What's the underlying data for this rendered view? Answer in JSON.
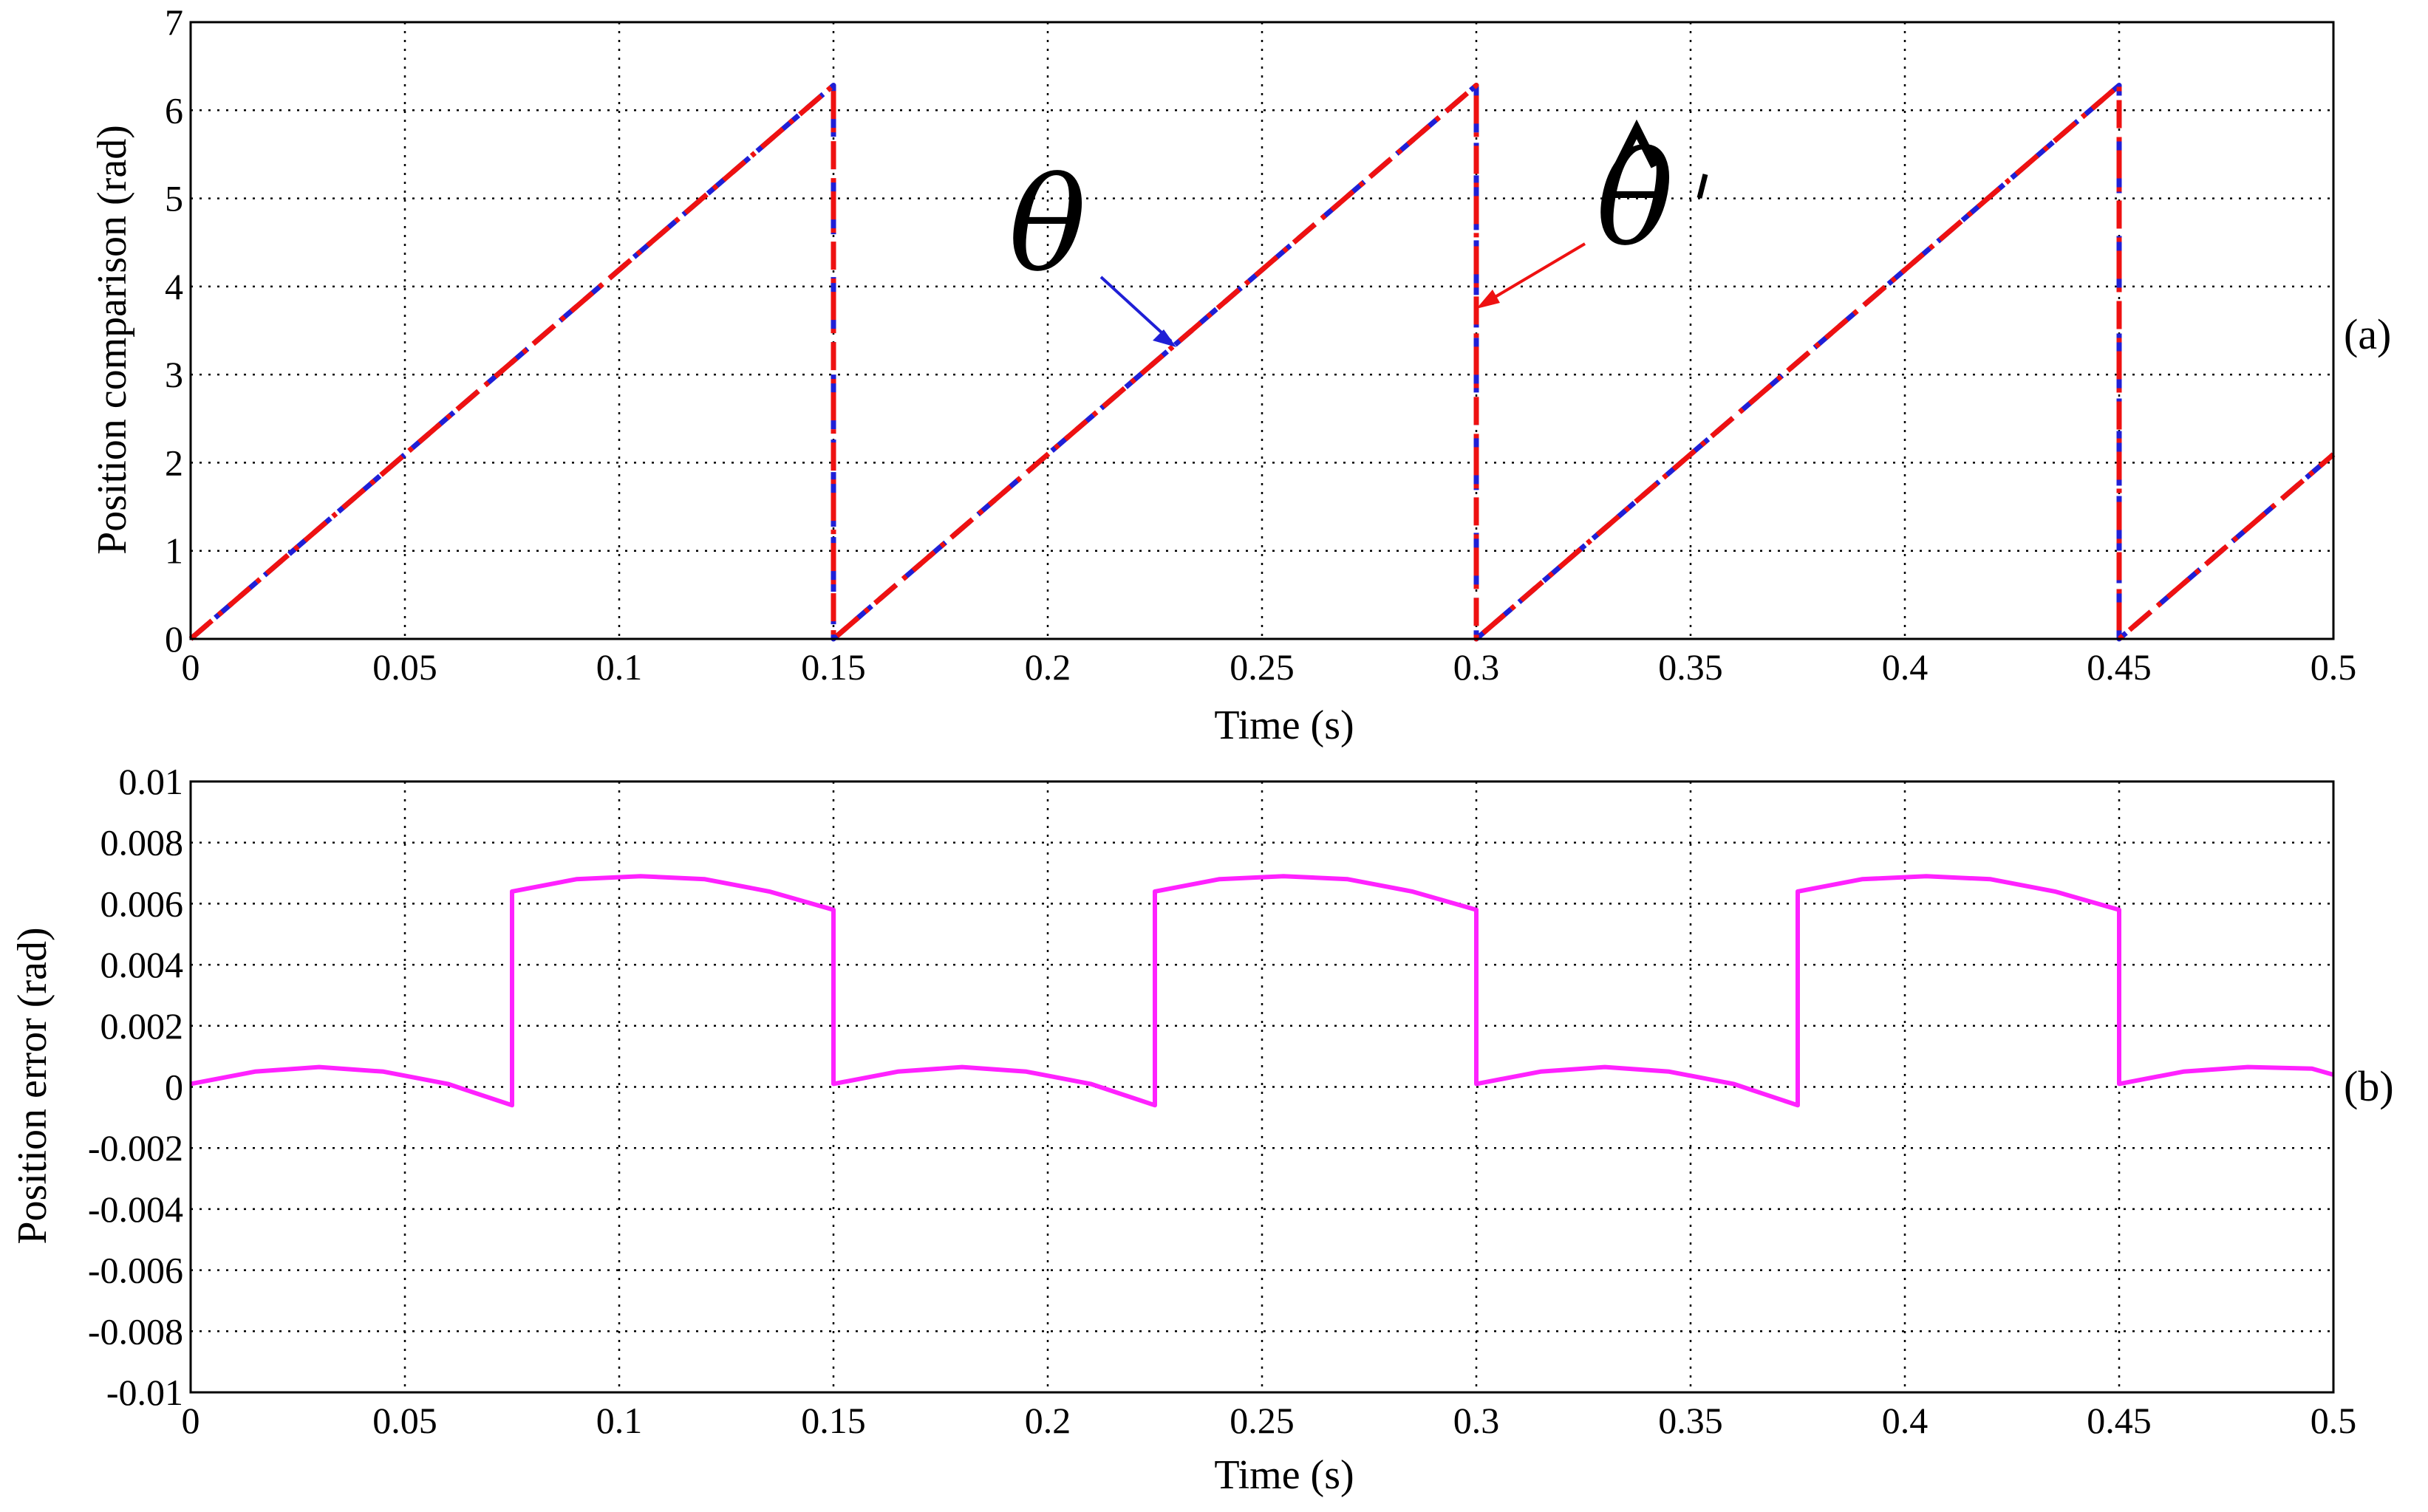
{
  "chart_data": [
    {
      "id": "a",
      "type": "line",
      "panel_label": "(a)",
      "xlabel": "Time (s)",
      "ylabel": "Position comparison (rad)",
      "xlim": [
        0,
        0.5
      ],
      "ylim": [
        0,
        7
      ],
      "xticks": [
        "0",
        "0.05",
        "0.1",
        "0.15",
        "0.2",
        "0.25",
        "0.3",
        "0.35",
        "0.4",
        "0.45",
        "0.5"
      ],
      "yticks": [
        "0",
        "1",
        "2",
        "3",
        "4",
        "5",
        "6",
        "7"
      ],
      "grid": true,
      "annotations": [
        {
          "name": "theta",
          "text": "θ",
          "color": "#1f1fd6",
          "points_to_x": 0.228,
          "points_to_y": 3.3
        },
        {
          "name": "theta-hat",
          "text": "θ̂'",
          "color": "#ee1111",
          "points_to_x": 0.3,
          "points_to_y": 3.8
        }
      ],
      "series": [
        {
          "name": "θ",
          "color": "#1f1fd6",
          "style": "dashed",
          "x": [
            0,
            0.15,
            0.15,
            0.3,
            0.3,
            0.45,
            0.45,
            0.5
          ],
          "y": [
            0,
            6.283,
            0,
            6.283,
            0,
            6.283,
            0,
            2.094
          ]
        },
        {
          "name": "θ̂'",
          "color": "#ee1111",
          "style": "dashdot",
          "x": [
            0,
            0.15,
            0.15,
            0.3,
            0.3,
            0.45,
            0.45,
            0.5
          ],
          "y": [
            0,
            6.283,
            0,
            6.283,
            0,
            6.283,
            0,
            2.094
          ]
        }
      ]
    },
    {
      "id": "b",
      "type": "line",
      "panel_label": "(b)",
      "xlabel": "Time (s)",
      "ylabel": "Position error (rad)",
      "xlim": [
        0,
        0.5
      ],
      "ylim": [
        -0.01,
        0.01
      ],
      "xticks": [
        "0",
        "0.05",
        "0.1",
        "0.15",
        "0.2",
        "0.25",
        "0.3",
        "0.35",
        "0.4",
        "0.45",
        "0.5"
      ],
      "yticks": [
        "-0.01",
        "-0.008",
        "-0.006",
        "-0.004",
        "-0.002",
        "0",
        "0.002",
        "0.004",
        "0.006",
        "0.008",
        "0.01"
      ],
      "grid": true,
      "series": [
        {
          "name": "Position error",
          "color": "#ff22ff",
          "style": "solid",
          "x": [
            0,
            0.015,
            0.03,
            0.045,
            0.06,
            0.075,
            0.075,
            0.09,
            0.105,
            0.12,
            0.135,
            0.15,
            0.15,
            0.165,
            0.18,
            0.195,
            0.21,
            0.225,
            0.225,
            0.24,
            0.255,
            0.27,
            0.285,
            0.3,
            0.3,
            0.315,
            0.33,
            0.345,
            0.36,
            0.375,
            0.375,
            0.39,
            0.405,
            0.42,
            0.435,
            0.45,
            0.45,
            0.465,
            0.48,
            0.495,
            0.5
          ],
          "y": [
            0.0001,
            0.0005,
            0.00065,
            0.0005,
            0.0001,
            -0.0006,
            0.0064,
            0.0068,
            0.0069,
            0.0068,
            0.0064,
            0.0058,
            0.0001,
            0.0005,
            0.00065,
            0.0005,
            0.0001,
            -0.0006,
            0.0064,
            0.0068,
            0.0069,
            0.0068,
            0.0064,
            0.0058,
            0.0001,
            0.0005,
            0.00065,
            0.0005,
            0.0001,
            -0.0006,
            0.0064,
            0.0068,
            0.0069,
            0.0068,
            0.0064,
            0.0058,
            0.0001,
            0.0005,
            0.00065,
            0.0006,
            0.0004
          ]
        }
      ]
    }
  ]
}
